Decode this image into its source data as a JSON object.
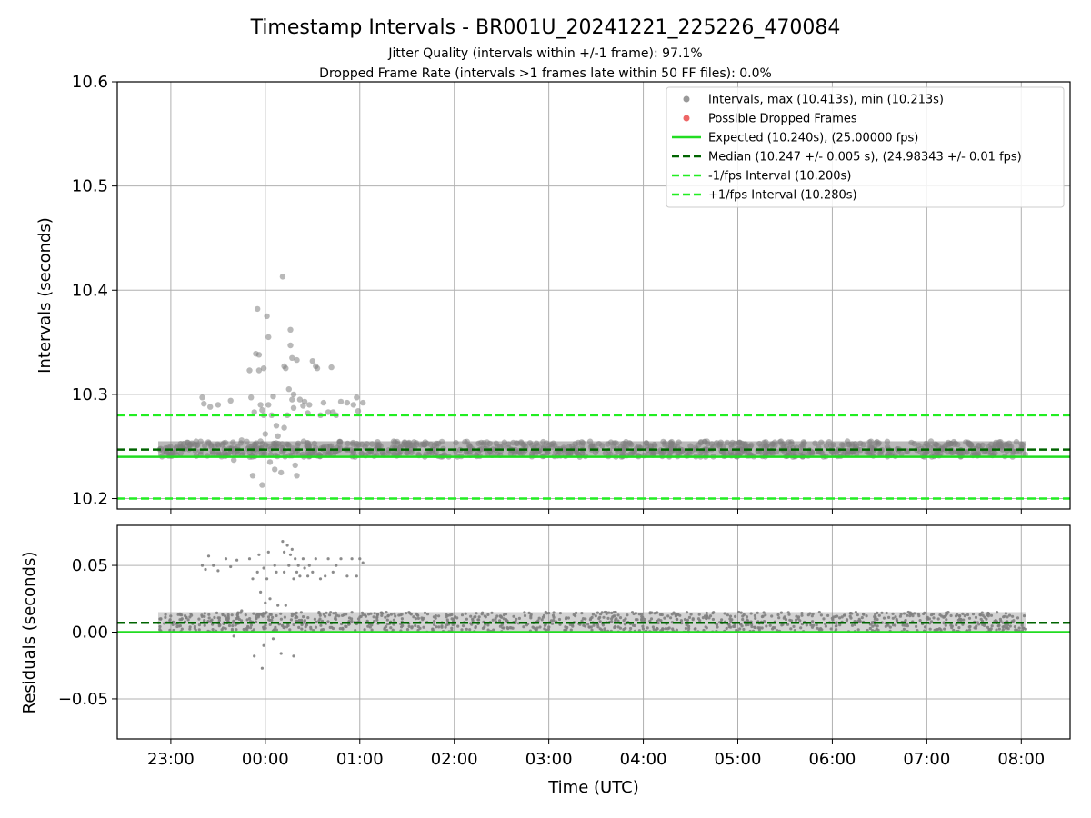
{
  "figure": {
    "title": "Timestamp Intervals - BR001U_20241221_225226_470084",
    "subtitle_1": "Jitter Quality (intervals within +/-1 frame): 97.1%",
    "subtitle_2": "Dropped Frame Rate (intervals >1 frames late within 50 FF files): 0.0%",
    "xlabel": "Time (UTC)"
  },
  "colors": {
    "points": "#808080",
    "dropped": "#ff4040",
    "expected": "#22dd22",
    "median": "#006400",
    "interval": "#22ee22",
    "grid": "#b0b0b0"
  },
  "chart_data": [
    {
      "type": "scatter",
      "panel": "top",
      "ylabel": "Intervals (seconds)",
      "ylim": [
        10.19,
        10.6
      ],
      "yticks": [
        10.2,
        10.3,
        10.4,
        10.5,
        10.6
      ],
      "ytick_labels": [
        "10.2",
        "10.3",
        "10.4",
        "10.5",
        "10.6"
      ],
      "xlim": [
        "22:26",
        "08:31"
      ],
      "grid": true,
      "legend_placement": "top-right",
      "legend": [
        {
          "kind": "marker",
          "color": "#999999",
          "label": "Intervals, max (10.413s), min (10.213s)"
        },
        {
          "kind": "marker",
          "color": "#ee6666",
          "label": "Possible Dropped Frames"
        },
        {
          "kind": "solid",
          "color": "#22dd22",
          "label": "Expected (10.240s), (25.00000 fps)"
        },
        {
          "kind": "dashed",
          "color": "#006400",
          "label": "Median (10.247 +/- 0.005 s), (24.98343 +/- 0.01 fps)"
        },
        {
          "kind": "dashed",
          "color": "#22ee22",
          "label": "-1/fps Interval (10.200s)"
        },
        {
          "kind": "dashed",
          "color": "#22ee22",
          "label": "+1/fps Interval (10.280s)"
        }
      ],
      "lines": {
        "expected": 10.24,
        "median": 10.247,
        "minus_fps": 10.2,
        "plus_fps": 10.28
      },
      "band": {
        "t_start": "22:52",
        "t_end": "08:03",
        "y_low": 10.24,
        "y_high": 10.255
      },
      "outliers": [
        [
          "23:20",
          10.297
        ],
        [
          "23:21",
          10.291
        ],
        [
          "23:25",
          10.288
        ],
        [
          "23:30",
          10.29
        ],
        [
          "23:38",
          10.294
        ],
        [
          "23:40",
          10.237
        ],
        [
          "23:42",
          10.245
        ],
        [
          "23:45",
          10.256
        ],
        [
          "23:50",
          10.323
        ],
        [
          "23:51",
          10.297
        ],
        [
          "23:52",
          10.222
        ],
        [
          "23:53",
          10.283
        ],
        [
          "23:54",
          10.339
        ],
        [
          "23:55",
          10.382
        ],
        [
          "23:56",
          10.338
        ],
        [
          "23:56",
          10.323
        ],
        [
          "23:57",
          10.255
        ],
        [
          "23:57",
          10.29
        ],
        [
          "23:58",
          10.213
        ],
        [
          "23:58",
          10.285
        ],
        [
          "23:59",
          10.28
        ],
        [
          "23:59",
          10.325
        ],
        [
          "23:59",
          10.245
        ],
        [
          "00:00",
          10.262
        ],
        [
          "00:01",
          10.375
        ],
        [
          "00:02",
          10.355
        ],
        [
          "00:02",
          10.29
        ],
        [
          "00:03",
          10.235
        ],
        [
          "00:04",
          10.28
        ],
        [
          "00:05",
          10.298
        ],
        [
          "00:06",
          10.228
        ],
        [
          "00:07",
          10.27
        ],
        [
          "00:08",
          10.26
        ],
        [
          "00:10",
          10.225
        ],
        [
          "00:11",
          10.413
        ],
        [
          "00:12",
          10.327
        ],
        [
          "00:12",
          10.268
        ],
        [
          "00:13",
          10.325
        ],
        [
          "00:14",
          10.28
        ],
        [
          "00:15",
          10.305
        ],
        [
          "00:16",
          10.362
        ],
        [
          "00:16",
          10.347
        ],
        [
          "00:17",
          10.335
        ],
        [
          "00:17",
          10.295
        ],
        [
          "00:18",
          10.3
        ],
        [
          "00:18",
          10.287
        ],
        [
          "00:19",
          10.232
        ],
        [
          "00:20",
          10.222
        ],
        [
          "00:20",
          10.333
        ],
        [
          "00:22",
          10.295
        ],
        [
          "00:24",
          10.289
        ],
        [
          "00:25",
          10.293
        ],
        [
          "00:27",
          10.282
        ],
        [
          "00:28",
          10.29
        ],
        [
          "00:30",
          10.332
        ],
        [
          "00:32",
          10.327
        ],
        [
          "00:33",
          10.325
        ],
        [
          "00:35",
          10.28
        ],
        [
          "00:37",
          10.292
        ],
        [
          "00:40",
          10.283
        ],
        [
          "00:42",
          10.326
        ],
        [
          "00:43",
          10.283
        ],
        [
          "00:45",
          10.28
        ],
        [
          "00:48",
          10.293
        ],
        [
          "00:52",
          10.292
        ],
        [
          "00:56",
          10.29
        ],
        [
          "00:58",
          10.297
        ],
        [
          "00:59",
          10.284
        ],
        [
          "01:02",
          10.292
        ]
      ]
    },
    {
      "type": "scatter",
      "panel": "bottom",
      "ylabel": "Residuals (seconds)",
      "ylim": [
        -0.08,
        0.08
      ],
      "yticks": [
        0.05,
        0.0,
        -0.05
      ],
      "ytick_labels": [
        "0.05",
        "0.00",
        "−0.05"
      ],
      "grid": true,
      "lines": {
        "expected": 0.0,
        "median": 0.007
      },
      "band": {
        "t_start": "22:52",
        "t_end": "08:03",
        "y_low": 0.0,
        "y_high": 0.015
      },
      "outliers": [
        [
          "23:20",
          0.05
        ],
        [
          "23:22",
          0.047
        ],
        [
          "23:24",
          0.057
        ],
        [
          "23:27",
          0.05
        ],
        [
          "23:30",
          0.046
        ],
        [
          "23:35",
          0.055
        ],
        [
          "23:38",
          0.049
        ],
        [
          "23:40",
          -0.003
        ],
        [
          "23:42",
          0.054
        ],
        [
          "23:45",
          0.016
        ],
        [
          "23:50",
          0.055
        ],
        [
          "23:52",
          0.04
        ],
        [
          "23:53",
          -0.018
        ],
        [
          "23:55",
          0.045
        ],
        [
          "23:56",
          0.058
        ],
        [
          "23:57",
          0.03
        ],
        [
          "23:58",
          -0.027
        ],
        [
          "23:59",
          0.048
        ],
        [
          "23:59",
          -0.01
        ],
        [
          "00:00",
          0.022
        ],
        [
          "00:01",
          0.04
        ],
        [
          "00:02",
          0.06
        ],
        [
          "00:03",
          0.025
        ],
        [
          "00:05",
          -0.005
        ],
        [
          "00:06",
          0.05
        ],
        [
          "00:07",
          0.045
        ],
        [
          "00:08",
          0.02
        ],
        [
          "00:09",
          0.006
        ],
        [
          "00:10",
          -0.016
        ],
        [
          "00:11",
          0.068
        ],
        [
          "00:12",
          0.06
        ],
        [
          "00:12",
          0.045
        ],
        [
          "00:13",
          0.02
        ],
        [
          "00:14",
          0.065
        ],
        [
          "00:15",
          0.05
        ],
        [
          "00:16",
          0.058
        ],
        [
          "00:17",
          0.062
        ],
        [
          "00:18",
          0.04
        ],
        [
          "00:18",
          -0.018
        ],
        [
          "00:19",
          0.055
        ],
        [
          "00:20",
          0.045
        ],
        [
          "00:21",
          0.05
        ],
        [
          "00:22",
          0.042
        ],
        [
          "00:24",
          0.055
        ],
        [
          "00:25",
          0.048
        ],
        [
          "00:27",
          0.042
        ],
        [
          "00:28",
          0.05
        ],
        [
          "00:30",
          0.045
        ],
        [
          "00:32",
          0.055
        ],
        [
          "00:35",
          0.04
        ],
        [
          "00:38",
          0.042
        ],
        [
          "00:40",
          0.055
        ],
        [
          "00:43",
          0.045
        ],
        [
          "00:45",
          0.05
        ],
        [
          "00:48",
          0.055
        ],
        [
          "00:52",
          0.042
        ],
        [
          "00:55",
          0.055
        ],
        [
          "00:58",
          0.042
        ],
        [
          "01:00",
          0.055
        ],
        [
          "01:02",
          0.052
        ]
      ]
    }
  ],
  "xaxis": {
    "ticks": [
      "23:00",
      "00:00",
      "01:00",
      "02:00",
      "03:00",
      "04:00",
      "05:00",
      "06:00",
      "07:00",
      "08:00"
    ]
  }
}
